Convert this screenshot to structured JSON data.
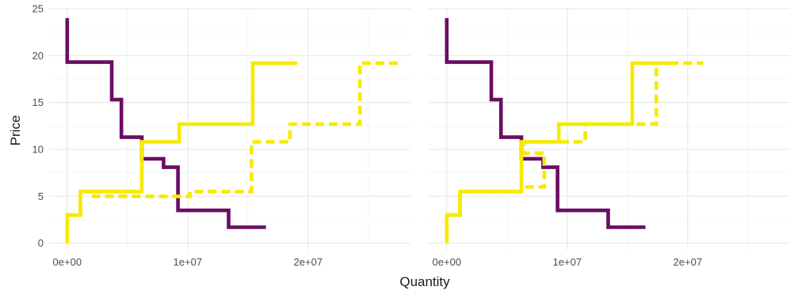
{
  "chart_data": {
    "type": "line",
    "step": true,
    "xlabel": "Quantity",
    "ylabel": "Price",
    "xlim": [
      -1500000,
      28500000
    ],
    "ylim": [
      -0.7,
      25
    ],
    "x_ticks": [
      0,
      10000000,
      20000000
    ],
    "x_tick_labels": [
      "0e+00",
      "1e+07",
      "2e+07"
    ],
    "y_ticks": [
      0,
      5,
      10,
      15,
      20,
      25
    ],
    "y_tick_labels": [
      "0",
      "5",
      "10",
      "15",
      "20",
      "25"
    ],
    "grid": true,
    "legend": "none",
    "colors": {
      "demand": "#6a0d63",
      "supply": "#f7ea00",
      "grid_major": "#ebebeb",
      "grid_minor": "#f4f4f4"
    },
    "panels": [
      {
        "series": [
          {
            "kind": "demand",
            "line": "solid",
            "x": [
              0,
              0,
              3700000,
              3700000,
              4500000,
              4500000,
              6200000,
              6200000,
              8000000,
              8000000,
              9200000,
              9200000,
              13400000,
              13400000,
              16500000
            ],
            "y": [
              24,
              19.3,
              19.3,
              15.3,
              15.3,
              11.3,
              11.3,
              9,
              9,
              8.1,
              8.1,
              3.5,
              3.5,
              1.7,
              1.7
            ]
          },
          {
            "kind": "supply",
            "line": "solid",
            "x": [
              0,
              0,
              1100000,
              1100000,
              6200000,
              6200000,
              9300000,
              9300000,
              15400000,
              15400000,
              19100000
            ],
            "y": [
              0,
              3,
              3,
              5.5,
              5.5,
              10.8,
              10.8,
              12.7,
              12.7,
              19.2,
              19.2
            ]
          },
          {
            "kind": "supply",
            "line": "dashed",
            "x": [
              0,
              0,
              1100000,
              1100000,
              2200000,
              2200000,
              10200000,
              10200000,
              15300000,
              15300000,
              18500000,
              18500000,
              24300000,
              24300000,
              27700000
            ],
            "y": [
              0,
              3,
              3,
              5.5,
              5.5,
              5,
              5,
              5.5,
              5.5,
              10.8,
              10.8,
              12.7,
              12.7,
              19.2,
              19.2
            ]
          }
        ]
      },
      {
        "series": [
          {
            "kind": "demand",
            "line": "solid",
            "x": [
              0,
              0,
              3700000,
              3700000,
              4500000,
              4500000,
              6200000,
              6200000,
              8000000,
              8000000,
              9200000,
              9200000,
              13400000,
              13400000,
              16500000
            ],
            "y": [
              24,
              19.3,
              19.3,
              15.3,
              15.3,
              11.3,
              11.3,
              9,
              9,
              8.1,
              8.1,
              3.5,
              3.5,
              1.7,
              1.7
            ]
          },
          {
            "kind": "supply",
            "line": "solid",
            "x": [
              0,
              0,
              1100000,
              1100000,
              6200000,
              6200000,
              9300000,
              9300000,
              15400000,
              15400000,
              19100000
            ],
            "y": [
              0,
              3,
              3,
              5.5,
              5.5,
              10.8,
              10.8,
              12.7,
              12.7,
              19.2,
              19.2
            ]
          },
          {
            "kind": "supply",
            "line": "dashed",
            "x": [
              0,
              0,
              1100000,
              1100000,
              6200000,
              6200000,
              8100000,
              8100000,
              6400000,
              6400000,
              11500000,
              11500000,
              17400000,
              17400000,
              21300000
            ],
            "y": [
              0,
              3,
              3,
              5.5,
              5.5,
              6,
              6,
              9.6,
              9.6,
              10.8,
              10.8,
              12.7,
              12.7,
              19.2,
              19.2
            ]
          }
        ]
      }
    ]
  }
}
